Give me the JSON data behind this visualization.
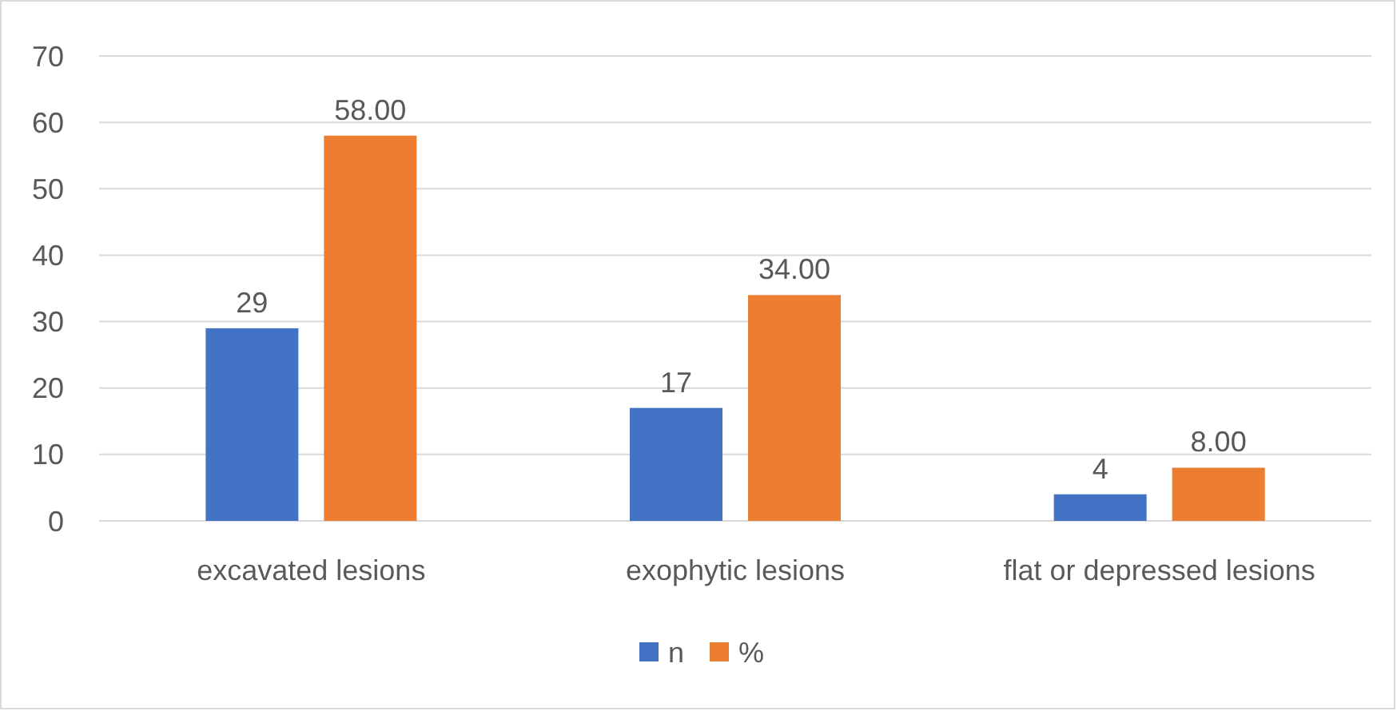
{
  "chart_data": {
    "type": "bar",
    "categories": [
      "excavated lesions",
      "exophytic lesions",
      "flat or depressed lesions"
    ],
    "series": [
      {
        "name": "n",
        "color": "#4472c4",
        "values": [
          29,
          17,
          4
        ],
        "value_labels": [
          "29",
          "17",
          "4"
        ]
      },
      {
        "name": "%",
        "color": "#ed7d31",
        "values": [
          58,
          34,
          8
        ],
        "value_labels": [
          "58.00",
          "34.00",
          "8.00"
        ]
      }
    ],
    "ylim": [
      0,
      70
    ],
    "yticks": [
      0,
      10,
      20,
      30,
      40,
      50,
      60,
      70
    ],
    "grid": "y",
    "legend": "bottom"
  }
}
